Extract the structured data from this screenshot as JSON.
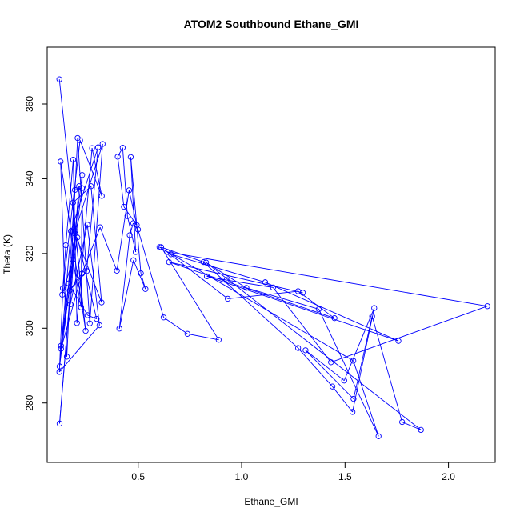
{
  "chart_data": {
    "type": "line",
    "title": "ATOM2 Southbound Ethane_GMI",
    "xlabel": "Ethane_GMI",
    "ylabel": "Theta (K)",
    "xlim": [
      0.0601,
      2.2259
    ],
    "ylim": [
      264.1,
      375.2
    ],
    "x_ticks": [
      0.5,
      1.0,
      1.5,
      2.0
    ],
    "x_tick_labels": [
      "0.5",
      "1.0",
      "1.5",
      "2.0"
    ],
    "y_ticks": [
      280,
      300,
      320,
      340,
      360
    ],
    "y_tick_labels": [
      "280",
      "300",
      "320",
      "340",
      "360"
    ],
    "grid": false,
    "legend": "none",
    "colors": {
      "series": "#0000ff",
      "axis": "#000000",
      "background": "#ffffff"
    },
    "series": [
      {
        "marker": "open-circle",
        "x": [
          0.119,
          0.246,
          0.125,
          0.155,
          0.207,
          0.266,
          0.328,
          0.195,
          0.12,
          0.214,
          0.172,
          0.254,
          0.313,
          0.119,
          0.136,
          0.15,
          0.186,
          0.204,
          0.277,
          0.324,
          0.219,
          0.133,
          0.184,
          0.224,
          0.229,
          0.127,
          0.206,
          0.299,
          0.255,
          0.164,
          0.194,
          0.228,
          0.12,
          0.175,
          0.306,
          0.251,
          0.169,
          0.217,
          0.185,
          0.272,
          0.323,
          0.195,
          0.127,
          0.228,
          0.316,
          0.397,
          0.456,
          0.493,
          0.431,
          0.401,
          0.425,
          0.448,
          0.488,
          0.464,
          0.513,
          0.535,
          0.477,
          0.409,
          0.459,
          0.476,
          0.499,
          0.623,
          0.738,
          0.889,
          0.611,
          0.816,
          1.273,
          1.439,
          1.536,
          1.641,
          1.496,
          1.309,
          1.541,
          1.631,
          1.776,
          1.867,
          0.828,
          1.023,
          1.373,
          1.662,
          1.54,
          0.603,
          0.659,
          1.114,
          1.758,
          0.832,
          0.927,
          1.152,
          1.432,
          2.188,
          0.64,
          0.933,
          1.273,
          1.449,
          0.649,
          1.296
        ],
        "y": [
          366.6,
          299.3,
          344.6,
          292.4,
          350.9,
          301.3,
          349.3,
          326.0,
          274.5,
          338.0,
          306.4,
          327.7,
          300.8,
          288.3,
          310.7,
          322.2,
          345.1,
          301.4,
          348.2,
          335.4,
          350.3,
          309.0,
          318.4,
          305.6,
          341.0,
          295.3,
          324.3,
          302.5,
          303.5,
          312.0,
          337.0,
          337.5,
          289.8,
          326.0,
          348.4,
          315.3,
          310.1,
          313.9,
          333.6,
          338.0,
          306.9,
          325.3,
          294.5,
          314.6,
          327.0,
          315.4,
          336.9,
          327.6,
          332.5,
          345.9,
          348.3,
          330.0,
          320.4,
          345.8,
          314.7,
          310.5,
          318.2,
          299.9,
          324.9,
          328.1,
          326.4,
          302.9,
          298.5,
          296.9,
          321.7,
          317.7,
          294.7,
          284.4,
          277.6,
          305.4,
          286.0,
          294.1,
          281.1,
          303.2,
          274.9,
          272.8,
          317.6,
          310.8,
          305.1,
          271.1,
          291.3,
          321.7,
          319.8,
          312.3,
          296.6,
          313.9,
          312.9,
          310.9,
          290.9,
          305.9,
          320.4,
          307.9,
          309.9,
          302.7,
          317.7,
          309.5
        ]
      }
    ]
  }
}
